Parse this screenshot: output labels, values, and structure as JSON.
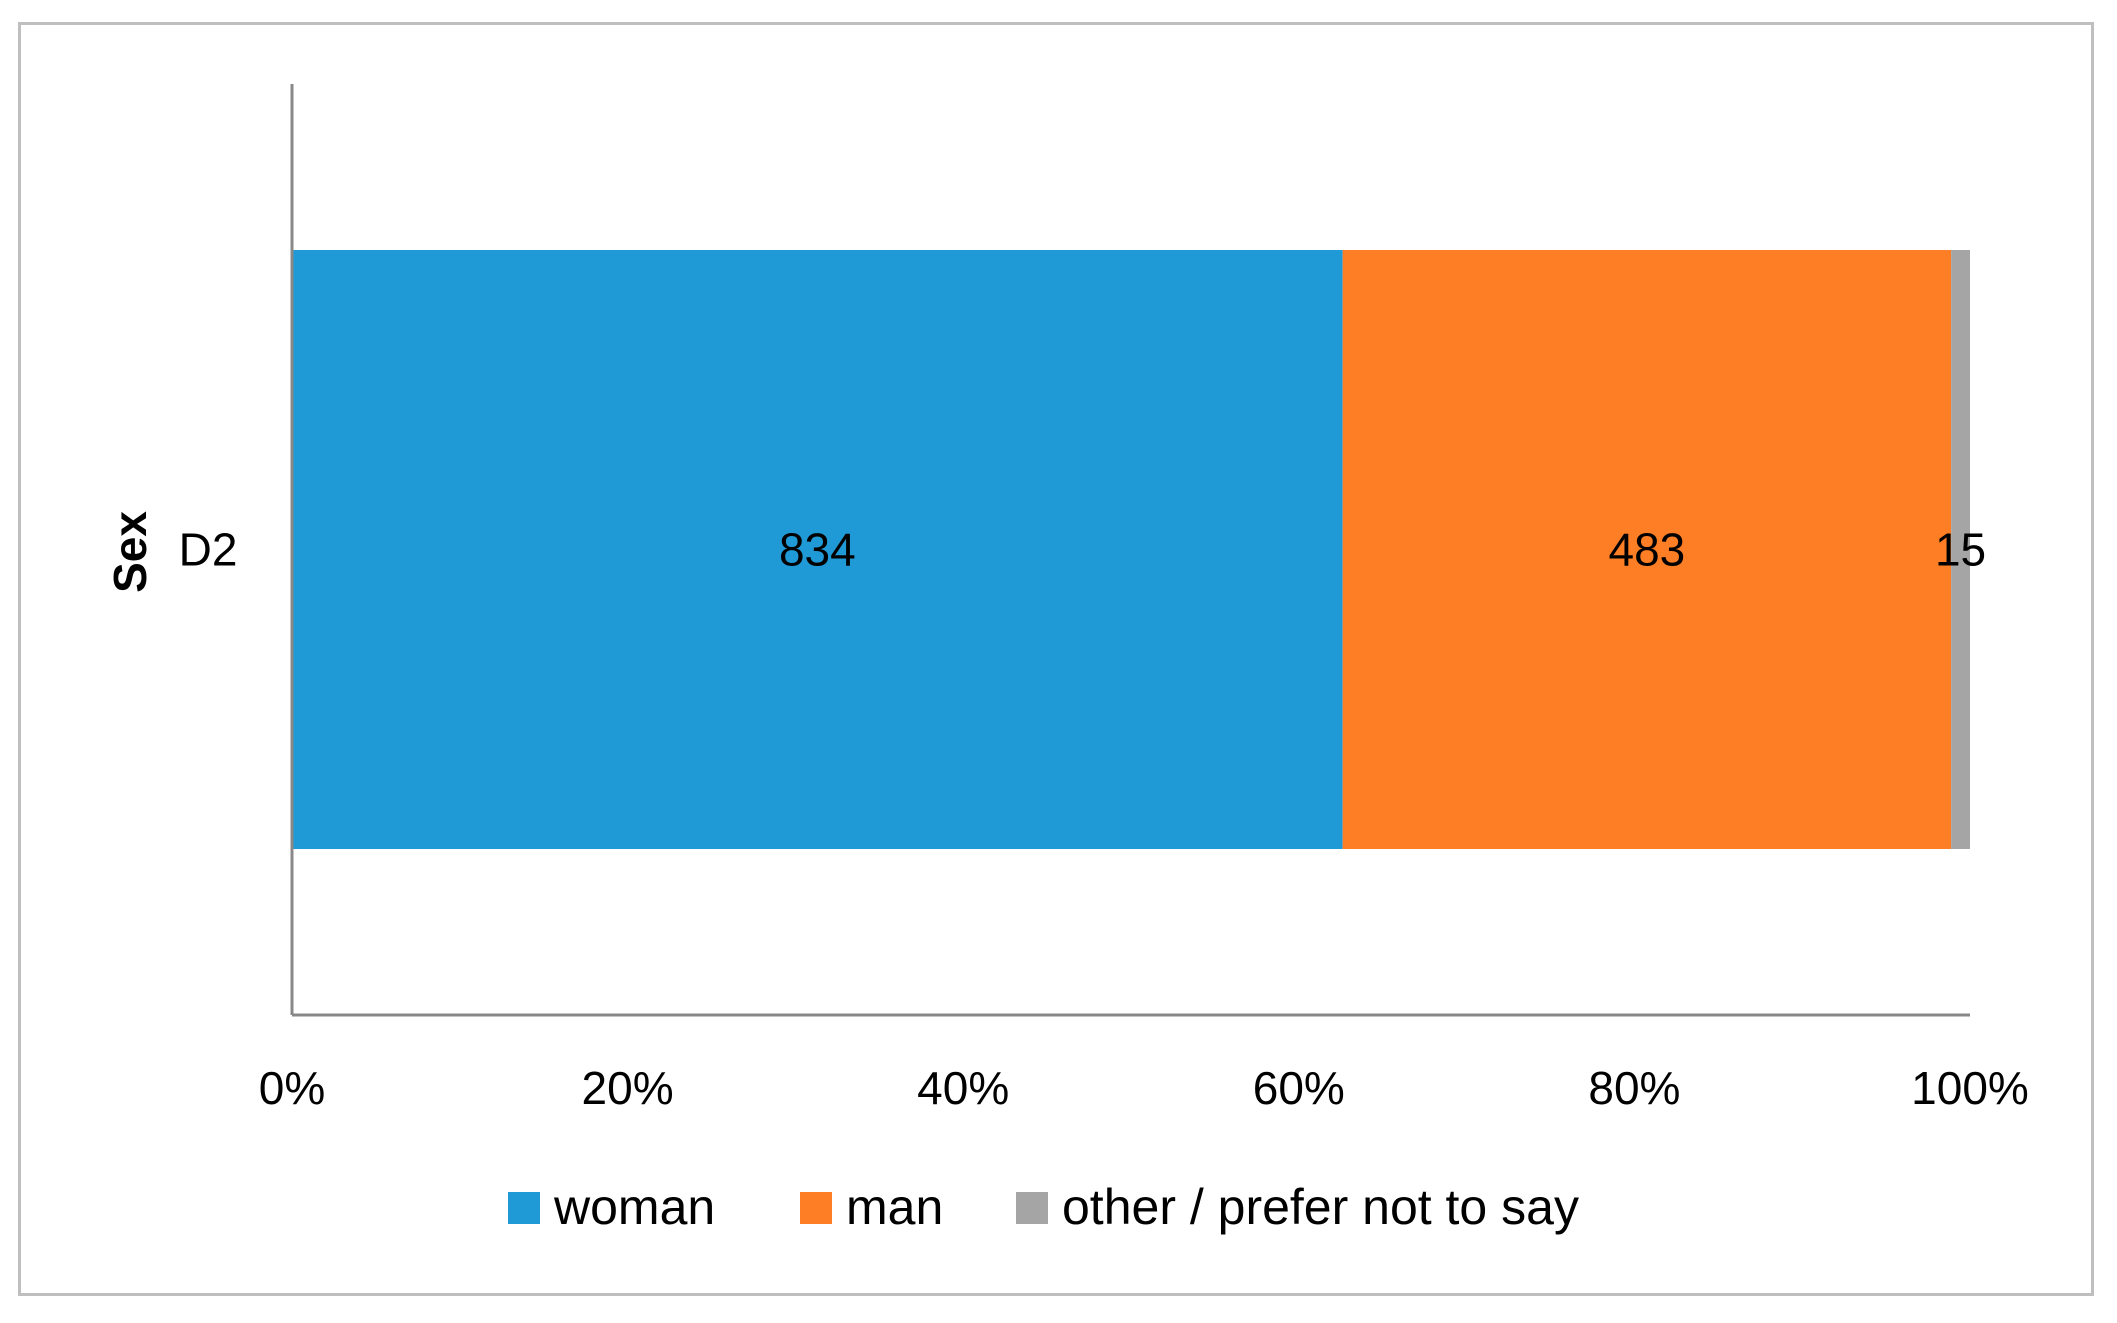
{
  "chart_data": {
    "type": "bar",
    "orientation": "horizontal",
    "stacked": "percent",
    "title": "",
    "xlabel": "",
    "ylabel": "Sex",
    "categories": [
      "D2"
    ],
    "series": [
      {
        "name": "woman",
        "values": [
          834
        ],
        "color": "#1f9ad6"
      },
      {
        "name": "man",
        "values": [
          483
        ],
        "color": "#fd7e24"
      },
      {
        "name": "other / prefer not to say",
        "values": [
          15
        ],
        "color": "#a5a5a5"
      }
    ],
    "xlim": [
      0,
      100
    ],
    "xticks": [
      "0%",
      "20%",
      "40%",
      "60%",
      "80%",
      "100%"
    ],
    "grid": false,
    "legend_position": "bottom"
  }
}
